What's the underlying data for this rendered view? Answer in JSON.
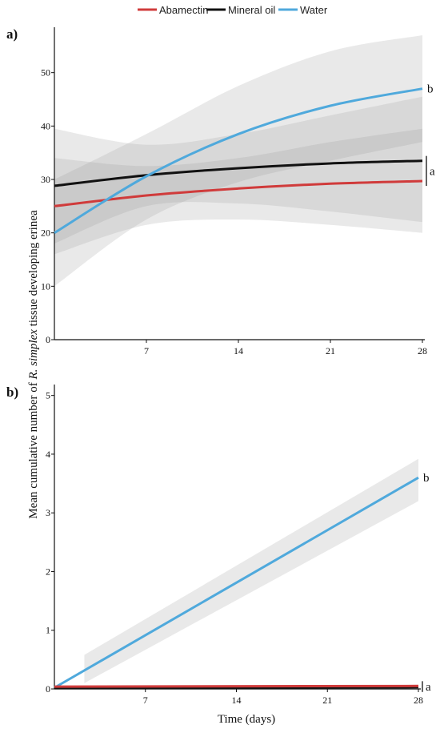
{
  "legend": [
    {
      "name": "Abamectin",
      "color": "#d03b3b"
    },
    {
      "name": "Mineral oil",
      "color": "#111111"
    },
    {
      "name": "Water",
      "color": "#4fa9dc"
    }
  ],
  "ylabel_prefix": "Mean cumulative number of ",
  "ylabel_italic": "R. simplex",
  "ylabel_suffix": " tissue developing erinea",
  "xlabel": "Time (days)",
  "chart_data": [
    {
      "panel": "a)",
      "type": "line",
      "x_ticks": [
        7,
        14,
        21,
        28
      ],
      "y_ticks": [
        0,
        10,
        20,
        30,
        40,
        50
      ],
      "xlim": [
        0,
        28
      ],
      "ylim": [
        0,
        57
      ],
      "grid": false,
      "legend_position": "top",
      "series": [
        {
          "name": "Abamectin",
          "color": "#d03b3b",
          "x": [
            0,
            7,
            14,
            21,
            28
          ],
          "y": [
            25,
            27,
            28.3,
            29.2,
            29.7
          ],
          "lower": [
            16,
            21.5,
            22.5,
            21.5,
            20
          ],
          "upper": [
            34,
            32.5,
            34,
            37,
            39.5
          ]
        },
        {
          "name": "Mineral oil",
          "color": "#111111",
          "x": [
            0,
            7,
            14,
            21,
            28
          ],
          "y": [
            28.8,
            30.8,
            32.1,
            33,
            33.5
          ],
          "lower": [
            18,
            25,
            25.5,
            24,
            22
          ],
          "upper": [
            39.5,
            36.5,
            38.5,
            42,
            45.5
          ]
        },
        {
          "name": "Water",
          "color": "#4fa9dc",
          "x": [
            0,
            7,
            14,
            21,
            28
          ],
          "y": [
            20,
            30.6,
            38.5,
            43.8,
            47
          ],
          "lower": [
            10,
            22.5,
            29.5,
            33.5,
            37
          ],
          "upper": [
            30,
            38.5,
            47.5,
            54,
            57
          ]
        }
      ],
      "annotations": [
        {
          "text": "b",
          "series": "Water"
        },
        {
          "text": "a",
          "series": "Abamectin / Mineral oil"
        }
      ]
    },
    {
      "panel": "b)",
      "type": "line",
      "x_ticks": [
        7,
        14,
        21,
        28
      ],
      "y_ticks": [
        0,
        1,
        2,
        3,
        4,
        5
      ],
      "xlim": [
        0,
        28
      ],
      "ylim": [
        0,
        5.05
      ],
      "grid": false,
      "series": [
        {
          "name": "Water",
          "color": "#4fa9dc",
          "x": [
            0,
            28
          ],
          "y": [
            0.02,
            3.6
          ],
          "band_x": [
            2.3,
            28
          ],
          "band_lower": [
            0.1,
            3.2
          ],
          "band_upper": [
            0.58,
            3.92
          ]
        },
        {
          "name": "Mineral oil",
          "color": "#111111",
          "x": [
            0,
            28
          ],
          "y": [
            0.02,
            0.03
          ]
        },
        {
          "name": "Abamectin",
          "color": "#d03b3b",
          "x": [
            0,
            28
          ],
          "y": [
            0.04,
            0.05
          ]
        }
      ],
      "annotations": [
        {
          "text": "b",
          "series": "Water"
        },
        {
          "text": "a",
          "series": "Abamectin / Mineral oil"
        }
      ]
    }
  ]
}
